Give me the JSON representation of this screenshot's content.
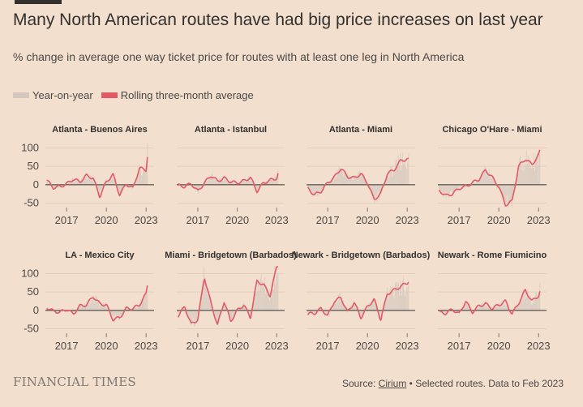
{
  "title": "Many North American routes have had big price increases on last year",
  "subtitle": "% change in average one way ticket price for routes with at least one leg in North America",
  "legend": [
    {
      "label": "Year-on-year",
      "color": "#d4c8be"
    },
    {
      "label": "Rolling three-month average",
      "color": "#e35a66"
    }
  ],
  "footer": {
    "brand": "FINANCIAL TIMES",
    "source_prefix": "Source: ",
    "source_link": "Cirium",
    "source_suffix": " • Selected routes. Data to Feb 2023"
  },
  "colors": {
    "bars": "#d4c8be",
    "line": "#e35a66",
    "zero": "#33302e",
    "grid": "#e3cfbd"
  },
  "chart_data": [
    {
      "type": "line",
      "title": "Atlanta - Buenos Aires",
      "ylim": [
        -60,
        110
      ],
      "yticks": [
        100,
        50,
        0,
        -50
      ],
      "xticks": [
        2017,
        2020,
        2023
      ],
      "x": [
        2015.5,
        2016,
        2016.5,
        2017,
        2017.5,
        2018,
        2018.5,
        2019,
        2019.5,
        2020,
        2020.5,
        2021,
        2021.5,
        2022,
        2022.5,
        2023,
        2023.1
      ],
      "values": [
        12,
        -8,
        -5,
        2,
        15,
        8,
        25,
        18,
        -32,
        8,
        28,
        -28,
        2,
        -10,
        45,
        40,
        78
      ]
    },
    {
      "type": "line",
      "title": "Atlanta - Istanbul",
      "ylim": [
        -60,
        110
      ],
      "yticks": [
        100,
        50,
        0,
        -50
      ],
      "xticks": [
        2017,
        2020,
        2023
      ],
      "x": [
        2015.5,
        2016,
        2016.5,
        2017,
        2017.5,
        2018,
        2018.5,
        2019,
        2019.5,
        2020,
        2020.5,
        2021,
        2021.5,
        2022,
        2022.5,
        2023,
        2023.1
      ],
      "values": [
        -2,
        -5,
        3,
        -18,
        5,
        25,
        10,
        18,
        8,
        5,
        10,
        20,
        -18,
        5,
        12,
        18,
        30
      ]
    },
    {
      "type": "line",
      "title": "Atlanta - Miami",
      "ylim": [
        -60,
        110
      ],
      "yticks": [
        100,
        50,
        0,
        -50
      ],
      "xticks": [
        2017,
        2020,
        2023
      ],
      "x": [
        2015.5,
        2016,
        2016.5,
        2017,
        2017.5,
        2018,
        2018.5,
        2019,
        2019.5,
        2020,
        2020.5,
        2021,
        2021.5,
        2022,
        2022.5,
        2023,
        2023.1
      ],
      "values": [
        -10,
        -28,
        -18,
        5,
        20,
        45,
        22,
        18,
        30,
        5,
        -40,
        -25,
        30,
        40,
        65,
        70,
        68
      ]
    },
    {
      "type": "line",
      "title": "Chicago O'Hare - Miami",
      "ylim": [
        -60,
        110
      ],
      "yticks": [
        100,
        50,
        0,
        -50
      ],
      "xticks": [
        2017,
        2020,
        2023
      ],
      "x": [
        2015.5,
        2016,
        2016.5,
        2017,
        2017.5,
        2018,
        2018.5,
        2019,
        2019.5,
        2020,
        2020.5,
        2021,
        2021.5,
        2022,
        2022.5,
        2023,
        2023.1
      ],
      "values": [
        -15,
        -30,
        -25,
        -10,
        -5,
        5,
        15,
        40,
        20,
        -5,
        -55,
        -45,
        50,
        70,
        55,
        80,
        92
      ]
    },
    {
      "type": "line",
      "title": "LA - Mexico City",
      "ylim": [
        -60,
        110
      ],
      "yticks": [
        100,
        50,
        0,
        -50
      ],
      "xticks": [
        2017,
        2020,
        2023
      ],
      "x": [
        2015.5,
        2016,
        2016.5,
        2017,
        2017.5,
        2018,
        2018.5,
        2019,
        2019.5,
        2020,
        2020.5,
        2021,
        2021.5,
        2022,
        2022.5,
        2023,
        2023.1
      ],
      "values": [
        8,
        -2,
        -5,
        3,
        -10,
        12,
        15,
        38,
        18,
        15,
        -25,
        -20,
        5,
        5,
        15,
        45,
        68
      ]
    },
    {
      "type": "line",
      "title": "Miami - Bridgetown (Barbados)",
      "ylim": [
        -60,
        110
      ],
      "yticks": [
        100,
        50,
        0,
        -50
      ],
      "xticks": [
        2017,
        2020,
        2023
      ],
      "x": [
        2015.5,
        2016,
        2016.5,
        2017,
        2017.5,
        2018,
        2018.5,
        2019,
        2019.5,
        2020,
        2020.5,
        2021,
        2021.5,
        2022,
        2022.5,
        2023,
        2023.1
      ],
      "values": [
        -15,
        10,
        -38,
        -25,
        90,
        20,
        -40,
        25,
        -30,
        0,
        15,
        -20,
        80,
        70,
        40,
        120,
        122
      ]
    },
    {
      "type": "line",
      "title": "Newark - Bridgetown (Barbados)",
      "ylim": [
        -60,
        110
      ],
      "yticks": [
        100,
        50,
        0,
        -50
      ],
      "xticks": [
        2017,
        2020,
        2023
      ],
      "x": [
        2015.5,
        2016,
        2016.5,
        2017,
        2017.5,
        2018,
        2018.5,
        2019,
        2019.5,
        2020,
        2020.5,
        2021,
        2021.5,
        2022,
        2022.5,
        2023,
        2023.1
      ],
      "values": [
        -10,
        -8,
        5,
        -15,
        25,
        35,
        -5,
        22,
        -20,
        10,
        30,
        -25,
        45,
        55,
        65,
        75,
        80
      ]
    },
    {
      "type": "line",
      "title": "Newark - Rome Fiumicino",
      "ylim": [
        -60,
        110
      ],
      "yticks": [
        100,
        50,
        0,
        -50
      ],
      "xticks": [
        2017,
        2020,
        2023
      ],
      "x": [
        2015.5,
        2016,
        2016.5,
        2017,
        2017.5,
        2018,
        2018.5,
        2019,
        2019.5,
        2020,
        2020.5,
        2021,
        2021.5,
        2022,
        2022.5,
        2023,
        2023.1
      ],
      "values": [
        -5,
        -8,
        3,
        -10,
        25,
        -5,
        12,
        18,
        5,
        15,
        25,
        -10,
        20,
        55,
        25,
        40,
        52
      ]
    }
  ]
}
